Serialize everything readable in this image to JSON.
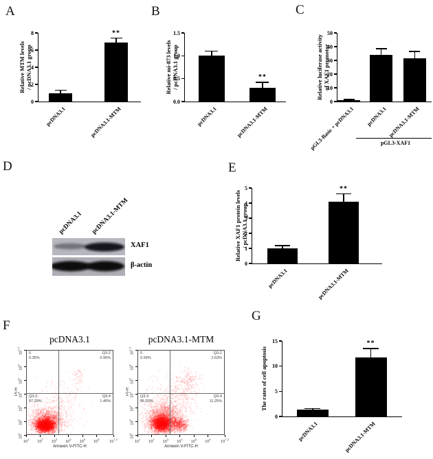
{
  "panels": {
    "A": {
      "label": "A"
    },
    "B": {
      "label": "B"
    },
    "C": {
      "label": "C"
    },
    "D": {
      "label": "D",
      "lanes": [
        "pcDNA3.1",
        "pcDNA3.1-MTM"
      ],
      "rows": [
        {
          "label": "XAF1"
        },
        {
          "label": "β-actin"
        }
      ]
    },
    "E": {
      "label": "E"
    },
    "F": {
      "label": "F"
    },
    "G": {
      "label": "G"
    }
  },
  "colors": {
    "bar": "#000000",
    "dot": "#ff0000",
    "axis": "#000000",
    "blot_bg": "#b7b7bf"
  },
  "chart_data": [
    {
      "id": "A",
      "type": "bar",
      "title": "",
      "ylabel": "Relative MTM levels / pcDNA3.1 group",
      "ylabel_lines": [
        "Relative MTM levels",
        "/ pcDNA3.1 group"
      ],
      "categories": [
        "pcDNA3.1",
        "pcDNA3.1-MTM"
      ],
      "values": [
        1.0,
        6.9
      ],
      "errors": [
        0.3,
        0.5
      ],
      "sig": [
        "",
        "**"
      ],
      "ylim": [
        0,
        8
      ],
      "yticks": [
        "0",
        "2",
        "4",
        "6",
        "8"
      ]
    },
    {
      "id": "B",
      "type": "bar",
      "title": "",
      "ylabel": "Relative mi-873 levels / pcDNA3.1 group",
      "ylabel_lines": [
        "Relative mi-873 levels",
        "/ pcDNA3.1 group"
      ],
      "categories": [
        "pcDNA3.1",
        "pcDNA3.1-MTM"
      ],
      "values": [
        1.0,
        0.3
      ],
      "errors": [
        0.1,
        0.12
      ],
      "sig": [
        "",
        "**"
      ],
      "ylim": [
        0,
        1.5
      ],
      "yticks": [
        "0.0",
        "0.5",
        "1.0",
        "1.5"
      ]
    },
    {
      "id": "C",
      "type": "bar",
      "title": "",
      "ylabel": "Relative luciferase activity of XAF1 promotor",
      "ylabel_lines": [
        "Relative luciferase activity",
        "of XAF1 promotor"
      ],
      "categories": [
        "pGL3-Basic + pcDNA3.1",
        "pcDNA3.1",
        "pcDNA3.1-MTM"
      ],
      "values": [
        1.0,
        34.0,
        31.5
      ],
      "errors": [
        0.5,
        4.5,
        5.0
      ],
      "sig": [
        "",
        "",
        ""
      ],
      "ylim": [
        0,
        50
      ],
      "yticks": [
        "0",
        "10",
        "20",
        "30",
        "40",
        "50"
      ],
      "group_line": {
        "label": "pGL3-XAF1"
      }
    },
    {
      "id": "E",
      "type": "bar",
      "title": "",
      "ylabel": "Relative XAF1 protein levels / pcDNA3.1 group",
      "ylabel_lines": [
        "Relative XAF1 protein levels",
        "/ pcDNA3.1 group"
      ],
      "categories": [
        "pcDNA3.1",
        "pcDNA3.1-MTM"
      ],
      "values": [
        1.0,
        4.1
      ],
      "errors": [
        0.18,
        0.5
      ],
      "sig": [
        "",
        "**"
      ],
      "ylim": [
        0,
        5
      ],
      "yticks": [
        "0",
        "1",
        "2",
        "3",
        "4",
        "5"
      ]
    },
    {
      "id": "G",
      "type": "bar",
      "title": "",
      "ylabel": "The rates of cell apoptosis",
      "ylabel_lines": [
        "The rates of cell apoptosis"
      ],
      "categories": [
        "pcDNA3.1",
        "pcDNA3.1-MTM"
      ],
      "values": [
        1.3,
        11.7
      ],
      "errors": [
        0.25,
        1.8
      ],
      "sig": [
        "",
        "**"
      ],
      "ylim": [
        0,
        15
      ],
      "yticks": [
        "0",
        "5",
        "10",
        "15"
      ]
    },
    {
      "id": "F1",
      "type": "scatter",
      "title": "pcDNA3.1",
      "xlabel": "Annexin V-FITC-H",
      "ylabel": "PI-H",
      "tick_exponents": [
        "1",
        "2",
        "3",
        "4",
        "5",
        "6",
        "7.2"
      ],
      "quadrants": {
        "top_left": {
          "name": "0",
          "pct": "0.35%"
        },
        "top_right": {
          "name": "Q3-2",
          "pct": "0.95%"
        },
        "bottom_left": {
          "name": "Q3-3",
          "pct": "87.29%"
        },
        "bottom_right": {
          "name": "Q3-4",
          "pct": "1.40%"
        }
      },
      "seed": 11,
      "clusters": [
        [
          0.21,
          0.11,
          0.05,
          0.035,
          2500,
          0.5
        ],
        [
          0.23,
          0.15,
          0.09,
          0.07,
          1700,
          0.35
        ],
        [
          0.26,
          0.22,
          0.14,
          0.13,
          450,
          0.3
        ],
        [
          0.45,
          0.45,
          0.13,
          0.12,
          130,
          0.35
        ],
        [
          0.6,
          0.7,
          0.05,
          0.045,
          45,
          0.4
        ]
      ]
    },
    {
      "id": "F2",
      "type": "scatter",
      "title": "pcDNA3.1-MTM",
      "xlabel": "Annexin V-FITC-H",
      "ylabel": "PI-H",
      "tick_exponents": [
        "1",
        "2",
        "3",
        "4",
        "5",
        "6",
        "7.2"
      ],
      "quadrants": {
        "top_left": {
          "name": "0",
          "pct": "0.59%"
        },
        "top_right": {
          "name": "Q3-2",
          "pct": "2.63%"
        },
        "bottom_left": {
          "name": "Q3-3",
          "pct": "85.53%"
        },
        "bottom_right": {
          "name": "Q3-4",
          "pct": "11.25%"
        }
      },
      "seed": 23,
      "clusters": [
        [
          0.27,
          0.13,
          0.055,
          0.045,
          2300,
          0.5
        ],
        [
          0.29,
          0.18,
          0.1,
          0.09,
          1700,
          0.35
        ],
        [
          0.33,
          0.28,
          0.15,
          0.15,
          500,
          0.3
        ],
        [
          0.47,
          0.12,
          0.05,
          0.04,
          470,
          0.45
        ],
        [
          0.5,
          0.5,
          0.12,
          0.12,
          260,
          0.35
        ],
        [
          0.6,
          0.66,
          0.06,
          0.05,
          85,
          0.4
        ]
      ]
    }
  ]
}
